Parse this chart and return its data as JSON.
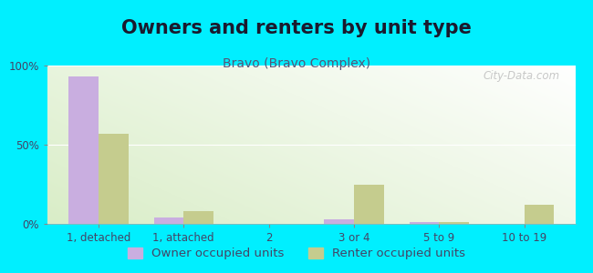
{
  "title": "Owners and renters by unit type",
  "subtitle": "Bravo (Bravo Complex)",
  "categories": [
    "1, detached",
    "1, attached",
    "2",
    "3 or 4",
    "5 to 9",
    "10 to 19"
  ],
  "owner_values": [
    93,
    4,
    0,
    3,
    1,
    0
  ],
  "renter_values": [
    57,
    8,
    0,
    25,
    1,
    12
  ],
  "owner_color": "#c9aee0",
  "renter_color": "#c5cc8e",
  "background_outer": "#00efff",
  "ylim": [
    0,
    100
  ],
  "yticks": [
    0,
    50,
    100
  ],
  "ytick_labels": [
    "0%",
    "50%",
    "100%"
  ],
  "bar_width": 0.35,
  "legend_owner": "Owner occupied units",
  "legend_renter": "Renter occupied units",
  "watermark": "City-Data.com",
  "title_fontsize": 15,
  "subtitle_fontsize": 10,
  "tick_fontsize": 8.5,
  "legend_fontsize": 9.5
}
